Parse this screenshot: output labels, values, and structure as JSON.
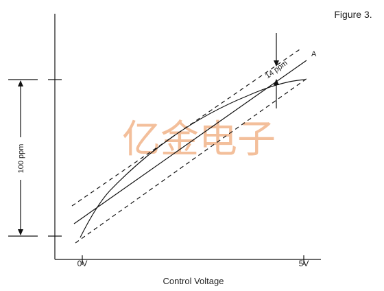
{
  "figure_label": "Figure 3.",
  "line_label": "A",
  "band_label": "14 ppm",
  "range_label": "100 ppm",
  "x_labels": [
    "0V",
    "5V"
  ],
  "x_axis_title": "Control Voltage",
  "watermark": "亿金电子"
}
